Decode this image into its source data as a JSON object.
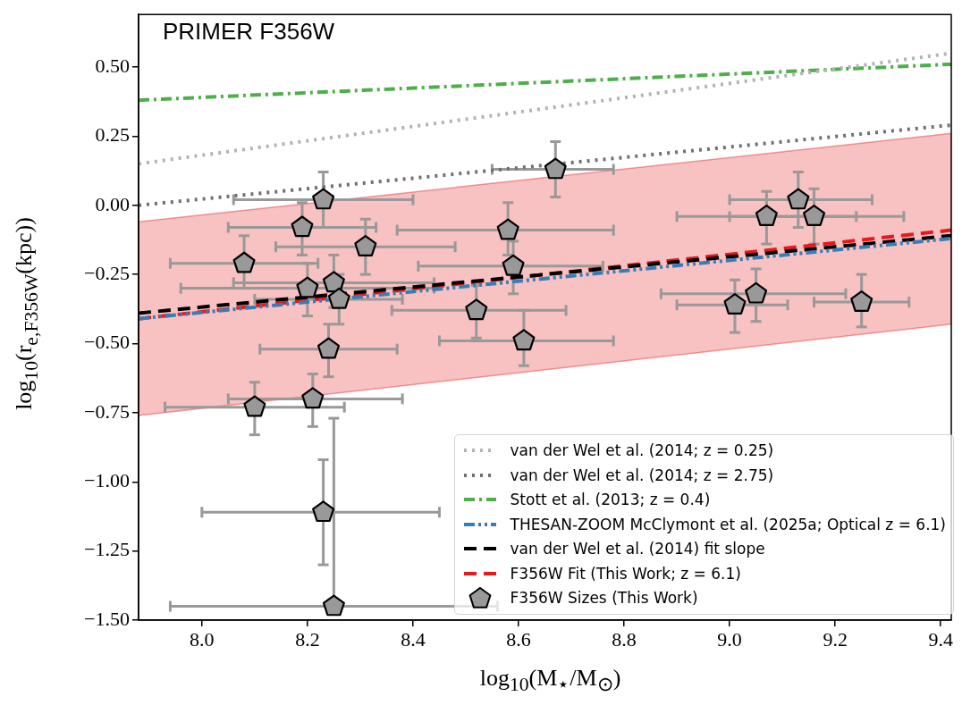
{
  "chart_data": {
    "type": "scatter",
    "title": "PRIMER F356W",
    "xlabel": "log$_{10}$(M$_{⋆}$/M$_{⊙}$)",
    "ylabel": "log$_{10}$(r$_{e,F356W}$(kpc))",
    "xlim": [
      7.88,
      9.42
    ],
    "ylim": [
      -1.5,
      0.69
    ],
    "xticks": [
      {
        "value": 8,
        "label": "8.0"
      },
      {
        "value": 8.2,
        "label": "8.2"
      },
      {
        "value": 8.4,
        "label": "8.4"
      },
      {
        "value": 8.6,
        "label": "8.6"
      },
      {
        "value": 8.8,
        "label": "8.8"
      },
      {
        "value": 9,
        "label": "9.0"
      },
      {
        "value": 9.2,
        "label": "9.2"
      },
      {
        "value": 9.4,
        "label": "9.4"
      }
    ],
    "yticks": [
      {
        "value": -1.5,
        "label": "−1.50"
      },
      {
        "value": -1.25,
        "label": "−1.25"
      },
      {
        "value": -1,
        "label": "−1.00"
      },
      {
        "value": -0.75,
        "label": "−0.75"
      },
      {
        "value": -0.5,
        "label": "−0.50"
      },
      {
        "value": -0.25,
        "label": "−0.25"
      },
      {
        "value": 0,
        "label": "0.00"
      },
      {
        "value": 0.25,
        "label": "0.25"
      },
      {
        "value": 0.5,
        "label": "0.50"
      }
    ],
    "grid": false,
    "legend": "bottom right",
    "series": [
      {
        "type": "line",
        "name": "van der Wel et al. (2014; z = 0.25)",
        "color": "#b3b3b3",
        "line_style": "dotted",
        "x": [
          7.88,
          9.42
        ],
        "values": [
          0.15,
          0.55
        ]
      },
      {
        "type": "line",
        "name": "van der Wel et al. (2014; z = 2.75)",
        "color": "#707070",
        "line_style": "dotted",
        "x": [
          7.88,
          9.42
        ],
        "values": [
          0.0,
          0.29
        ]
      },
      {
        "type": "line",
        "name": "Stott et al. (2013; z = 0.4)",
        "color": "#4daf4a",
        "line_style": "dashdot",
        "x": [
          7.88,
          9.42
        ],
        "values": [
          0.38,
          0.51
        ]
      },
      {
        "type": "line",
        "name": "THESAN-ZOOM McClymont et al. (2025a; Optical z = 6.1)",
        "color": "#377eb8",
        "line_style": "dashdotdot",
        "x": [
          7.88,
          9.42
        ],
        "values": [
          -0.41,
          -0.12
        ]
      },
      {
        "type": "line",
        "name": "van der Wel et al. (2014) fit slope",
        "color": "#000000",
        "line_style": "dashed",
        "x": [
          7.88,
          9.42
        ],
        "values": [
          -0.39,
          -0.11
        ]
      },
      {
        "type": "line",
        "name": "F356W Fit (This Work; z = 6.1)",
        "color": "#e41a1c",
        "line_style": "dashed",
        "x": [
          7.88,
          9.42
        ],
        "values": [
          -0.41,
          -0.09
        ],
        "lower": [
          -0.76,
          -0.43
        ],
        "upper": [
          -0.06,
          0.26
        ]
      },
      {
        "name": "F356W Sizes (This Work)",
        "color": "#999999",
        "x": [
          8.08,
          8.23,
          8.19,
          8.31,
          8.2,
          8.25,
          8.26,
          8.24,
          8.21,
          8.1,
          8.23,
          8.25,
          8.67,
          8.58,
          8.59,
          8.52,
          8.61,
          9.13,
          9.07,
          9.16,
          9.05,
          9.01,
          9.25
        ],
        "values": [
          -0.21,
          0.02,
          -0.08,
          -0.15,
          -0.3,
          -0.28,
          -0.34,
          -0.52,
          -0.7,
          -0.73,
          -1.11,
          -1.45,
          0.13,
          -0.09,
          -0.22,
          -0.38,
          -0.49,
          0.02,
          -0.04,
          -0.04,
          -0.32,
          -0.36,
          -0.35
        ],
        "xerrors": [
          [
            7.94,
            8.22
          ],
          [
            8.06,
            8.4
          ],
          [
            8.05,
            8.33
          ],
          [
            8.14,
            8.48
          ],
          [
            7.96,
            8.44
          ],
          [
            8.06,
            8.44
          ],
          [
            8.1,
            8.38
          ],
          [
            8.11,
            8.37
          ],
          [
            8.05,
            8.38
          ],
          [
            7.93,
            8.27
          ],
          [
            8.0,
            8.45
          ],
          [
            7.94,
            8.56
          ],
          [
            8.55,
            8.78
          ],
          [
            8.37,
            8.78
          ],
          [
            8.41,
            8.76
          ],
          [
            8.36,
            8.69
          ],
          [
            8.45,
            8.78
          ],
          [
            9.0,
            9.27
          ],
          [
            8.9,
            9.24
          ],
          [
            9.0,
            9.33
          ],
          [
            8.87,
            9.22
          ],
          [
            8.9,
            9.11
          ],
          [
            9.16,
            9.34
          ]
        ],
        "errors": [
          [
            -0.3,
            -0.11
          ],
          [
            -0.08,
            0.12
          ],
          [
            -0.18,
            0.01
          ],
          [
            -0.25,
            -0.05
          ],
          [
            -0.4,
            -0.21
          ],
          [
            -0.37,
            -0.18
          ],
          [
            -0.43,
            -0.25
          ],
          [
            -0.62,
            -0.43
          ],
          [
            -0.8,
            -0.61
          ],
          [
            -0.83,
            -0.64
          ],
          [
            -1.3,
            -0.92
          ],
          [
            -1.45,
            -0.77
          ],
          [
            0.03,
            0.23
          ],
          [
            -0.18,
            0.01
          ],
          [
            -0.32,
            -0.13
          ],
          [
            -0.48,
            -0.29
          ],
          [
            -0.58,
            -0.38
          ],
          [
            -0.08,
            0.12
          ],
          [
            -0.14,
            0.05
          ],
          [
            -0.14,
            0.06
          ],
          [
            -0.42,
            -0.23
          ],
          [
            -0.46,
            -0.27
          ],
          [
            -0.44,
            -0.25
          ]
        ]
      }
    ]
  }
}
